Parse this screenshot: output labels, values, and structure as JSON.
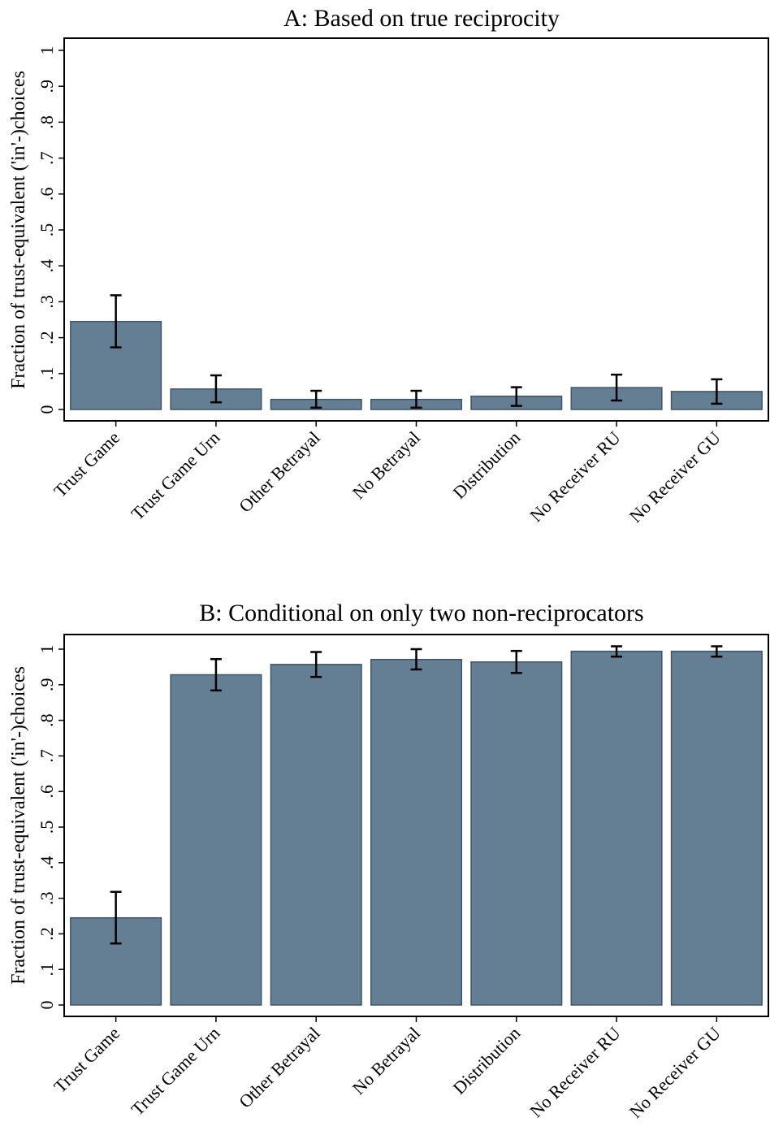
{
  "chart_data": [
    {
      "type": "bar",
      "title": "A: Based on true reciprocity",
      "xlabel": "",
      "ylabel": "Fraction of trust-equivalent ('in'-)choices",
      "ylim": [
        0,
        1
      ],
      "yticks": [
        "0",
        ".1",
        ".2",
        ".3",
        ".4",
        ".5",
        ".6",
        ".7",
        ".8",
        ".9",
        "1"
      ],
      "categories": [
        "Trust Game",
        "Trust Game Urn",
        "Other Betrayal",
        "No Betrayal",
        "Distribution",
        "No Receiver RU",
        "No Receiver GU"
      ],
      "values": [
        0.245,
        0.057,
        0.028,
        0.028,
        0.037,
        0.061,
        0.05
      ],
      "error_low": [
        0.173,
        0.02,
        0.005,
        0.005,
        0.01,
        0.025,
        0.016
      ],
      "error_high": [
        0.318,
        0.095,
        0.052,
        0.052,
        0.062,
        0.097,
        0.084
      ],
      "grid": false,
      "bar_color": "#647f94",
      "error_color": "#000000"
    },
    {
      "type": "bar",
      "title": "B: Conditional on only two non-reciprocators",
      "xlabel": "",
      "ylabel": "Fraction of trust-equivalent ('in'-)choices",
      "ylim": [
        0,
        1
      ],
      "yticks": [
        "0",
        ".1",
        ".2",
        ".3",
        ".4",
        ".5",
        ".6",
        ".7",
        ".8",
        ".9",
        "1"
      ],
      "categories": [
        "Trust Game",
        "Trust Game Urn",
        "Other Betrayal",
        "No Betrayal",
        "Distribution",
        "No Receiver RU",
        "No Receiver GU"
      ],
      "values": [
        0.245,
        0.928,
        0.957,
        0.971,
        0.964,
        0.994,
        0.994
      ],
      "error_low": [
        0.173,
        0.884,
        0.922,
        0.943,
        0.933,
        0.979,
        0.979
      ],
      "error_high": [
        0.318,
        0.972,
        0.992,
        1.0,
        0.995,
        1.008,
        1.008
      ],
      "grid": false,
      "bar_color": "#647f94",
      "error_color": "#000000"
    }
  ]
}
